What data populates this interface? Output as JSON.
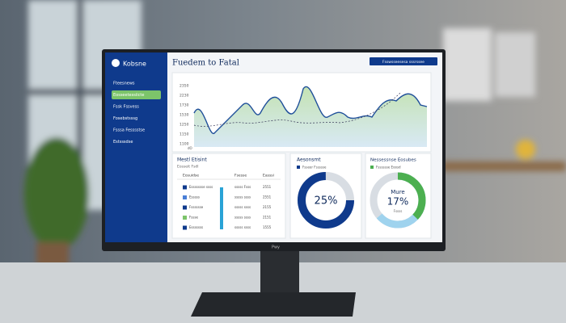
{
  "app": {
    "logo": "Kobsne",
    "nav": [
      "Fteesnews",
      "Eosseetessiicte",
      "Fssk Fssvess",
      "Fosebstsssg",
      "Fsssa Fesssstse",
      "Estsssdse"
    ]
  },
  "header": {
    "title": "Fuedem to Fatal",
    "button": "Fsswsseesesa sssrssee"
  },
  "main_chart": {
    "y_labels": [
      "2350",
      "2230",
      "1730",
      "1530",
      "1250",
      "1150",
      "1100"
    ],
    "x_label": "dO"
  },
  "table_card": {
    "title": "Mestl Etisint",
    "subtitle": "Eosseit Fsdl",
    "headers": [
      "Eosuidse",
      "Fsesse",
      "Easssi"
    ],
    "rows": [
      [
        "Essssssse ssss",
        "sssss Fsss",
        "2551"
      ],
      [
        "Esssss",
        "sssss ssss",
        "2551"
      ],
      [
        "Fsssssse",
        "sssss ssss",
        "2155"
      ],
      [
        "Fssse",
        "sssss ssss",
        "2151"
      ],
      [
        "Esssssss",
        "sssss ssss",
        "1555"
      ]
    ]
  },
  "donut_1": {
    "title": "Aesonsmt",
    "legend": "Fsseer Fssssse",
    "center": "25%"
  },
  "donut_2": {
    "title": "Nessessnse Eosubes",
    "legend": "Fsssssse Eoosd",
    "center_top": "Mure",
    "center": "17%",
    "center_bottom": "Fssss"
  },
  "monitor": {
    "brand": "Pwy"
  }
}
